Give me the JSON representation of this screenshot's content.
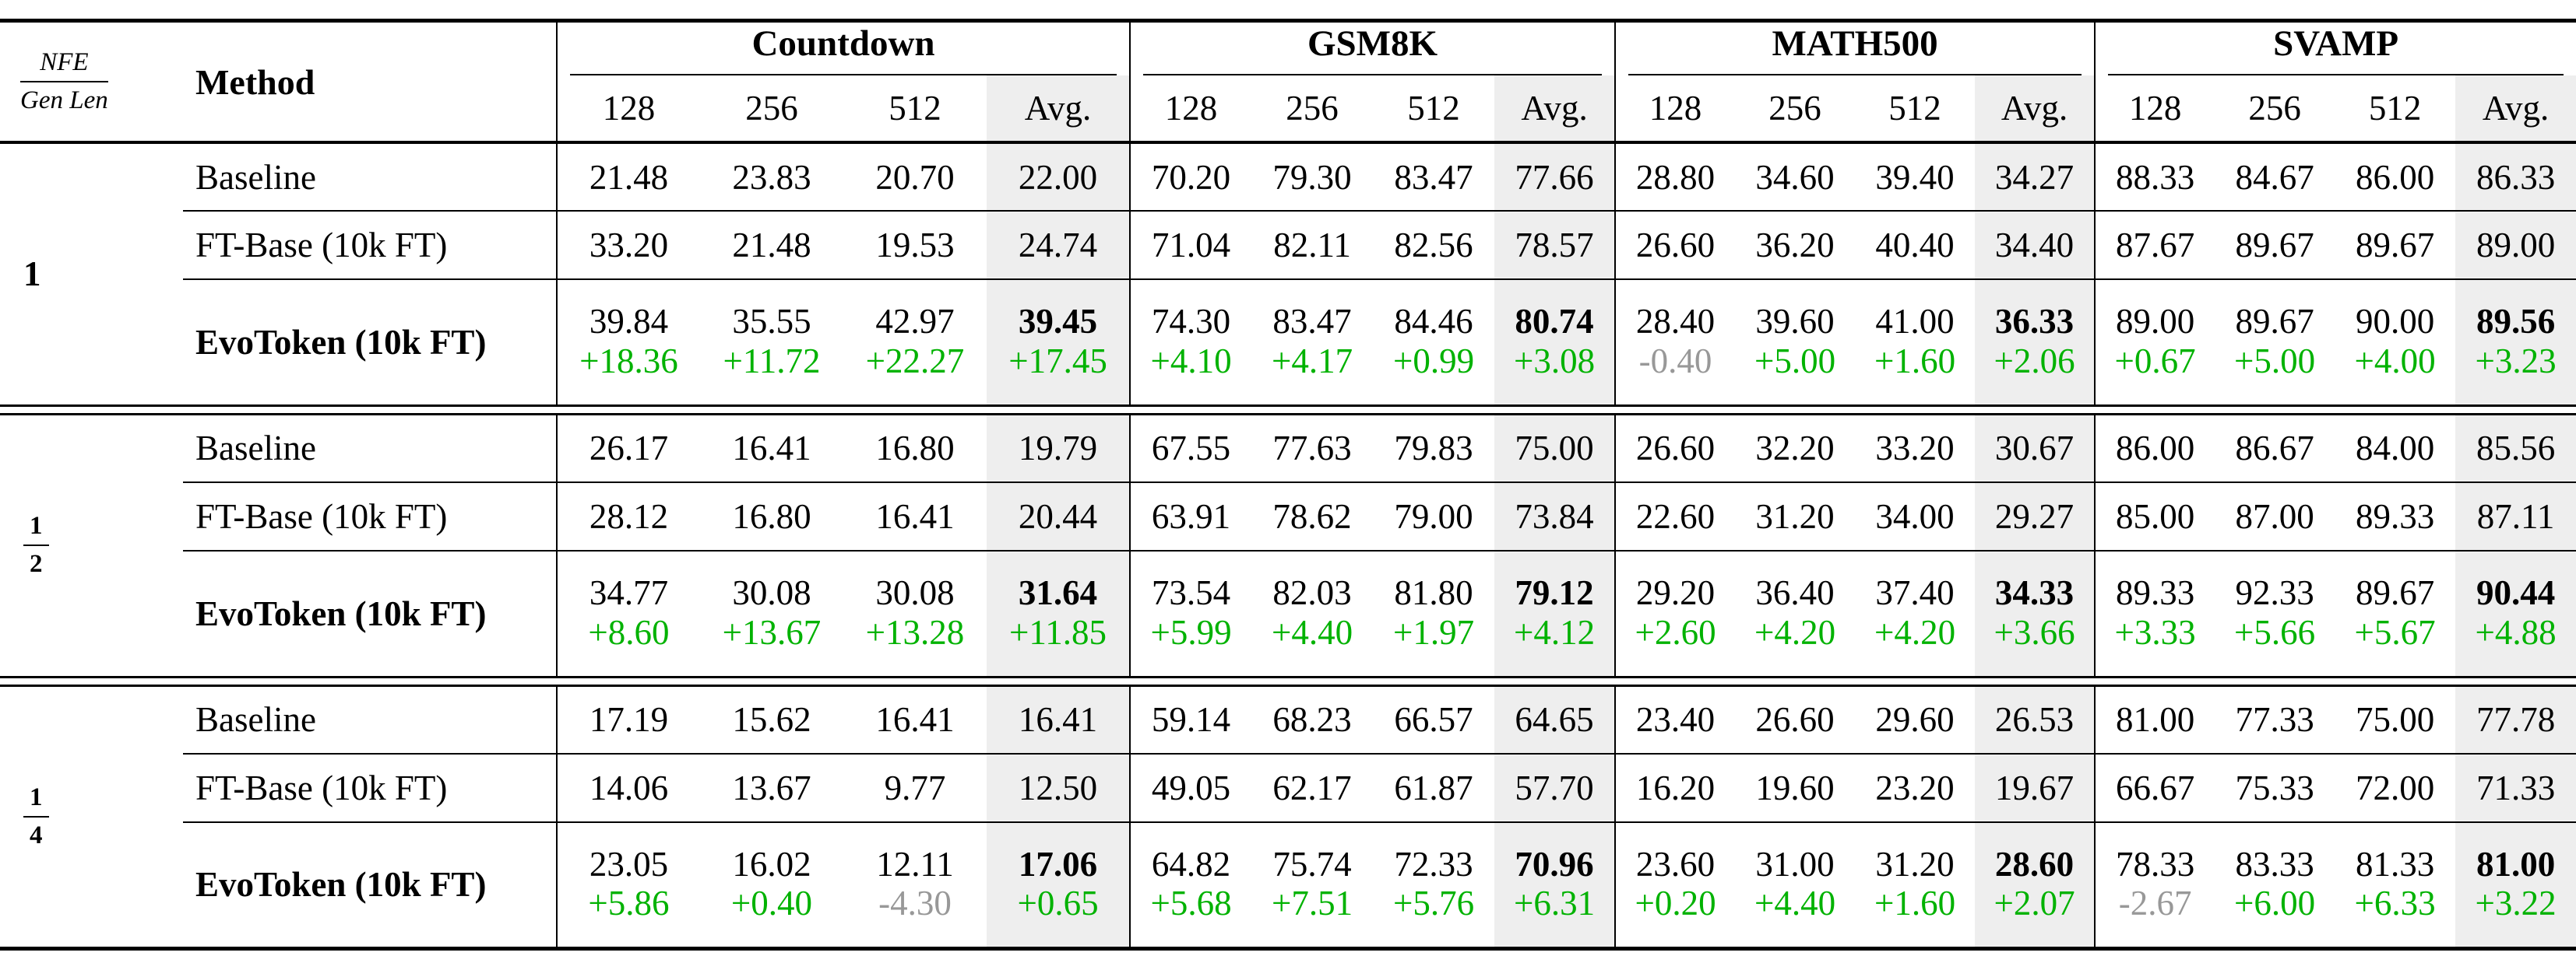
{
  "table": {
    "corner": {
      "numerator": "NFE",
      "denominator": "Gen Len",
      "method_label": "Method"
    },
    "benchmarks": [
      "Countdown",
      "GSM8K",
      "MATH500",
      "SVAMP"
    ],
    "gen_lengths": [
      "128",
      "256",
      "512",
      "Avg."
    ],
    "groups": [
      {
        "ratio": {
          "label": "1"
        },
        "rows": [
          {
            "method": "Baseline",
            "bold": false,
            "cells": [
              [
                "21.48",
                "23.83",
                "20.70",
                "22.00"
              ],
              [
                "70.20",
                "79.30",
                "83.47",
                "77.66"
              ],
              [
                "28.80",
                "34.60",
                "39.40",
                "34.27"
              ],
              [
                "88.33",
                "84.67",
                "86.00",
                "86.33"
              ]
            ]
          },
          {
            "method": "FT-Base (10k FT)",
            "bold": false,
            "cells": [
              [
                "33.20",
                "21.48",
                "19.53",
                "24.74"
              ],
              [
                "71.04",
                "82.11",
                "82.56",
                "78.57"
              ],
              [
                "26.60",
                "36.20",
                "40.40",
                "34.40"
              ],
              [
                "87.67",
                "89.67",
                "89.67",
                "89.00"
              ]
            ]
          },
          {
            "method": "EvoToken (10k FT)",
            "bold": true,
            "cells": [
              [
                "39.84",
                "35.55",
                "42.97",
                "39.45"
              ],
              [
                "74.30",
                "83.47",
                "84.46",
                "80.74"
              ],
              [
                "28.40",
                "39.60",
                "41.00",
                "36.33"
              ],
              [
                "89.00",
                "89.67",
                "90.00",
                "89.56"
              ]
            ],
            "deltas": [
              [
                "+18.36",
                "+11.72",
                "+22.27",
                "+17.45"
              ],
              [
                "+4.10",
                "+4.17",
                "+0.99",
                "+3.08"
              ],
              [
                "-0.40",
                "+5.00",
                "+1.60",
                "+2.06"
              ],
              [
                "+0.67",
                "+5.00",
                "+4.00",
                "+3.23"
              ]
            ]
          }
        ]
      },
      {
        "ratio": {
          "num": "1",
          "den": "2"
        },
        "rows": [
          {
            "method": "Baseline",
            "bold": false,
            "cells": [
              [
                "26.17",
                "16.41",
                "16.80",
                "19.79"
              ],
              [
                "67.55",
                "77.63",
                "79.83",
                "75.00"
              ],
              [
                "26.60",
                "32.20",
                "33.20",
                "30.67"
              ],
              [
                "86.00",
                "86.67",
                "84.00",
                "85.56"
              ]
            ]
          },
          {
            "method": "FT-Base (10k FT)",
            "bold": false,
            "cells": [
              [
                "28.12",
                "16.80",
                "16.41",
                "20.44"
              ],
              [
                "63.91",
                "78.62",
                "79.00",
                "73.84"
              ],
              [
                "22.60",
                "31.20",
                "34.00",
                "29.27"
              ],
              [
                "85.00",
                "87.00",
                "89.33",
                "87.11"
              ]
            ]
          },
          {
            "method": "EvoToken (10k FT)",
            "bold": true,
            "cells": [
              [
                "34.77",
                "30.08",
                "30.08",
                "31.64"
              ],
              [
                "73.54",
                "82.03",
                "81.80",
                "79.12"
              ],
              [
                "29.20",
                "36.40",
                "37.40",
                "34.33"
              ],
              [
                "89.33",
                "92.33",
                "89.67",
                "90.44"
              ]
            ],
            "deltas": [
              [
                "+8.60",
                "+13.67",
                "+13.28",
                "+11.85"
              ],
              [
                "+5.99",
                "+4.40",
                "+1.97",
                "+4.12"
              ],
              [
                "+2.60",
                "+4.20",
                "+4.20",
                "+3.66"
              ],
              [
                "+3.33",
                "+5.66",
                "+5.67",
                "+4.88"
              ]
            ]
          }
        ]
      },
      {
        "ratio": {
          "num": "1",
          "den": "4"
        },
        "rows": [
          {
            "method": "Baseline",
            "bold": false,
            "cells": [
              [
                "17.19",
                "15.62",
                "16.41",
                "16.41"
              ],
              [
                "59.14",
                "68.23",
                "66.57",
                "64.65"
              ],
              [
                "23.40",
                "26.60",
                "29.60",
                "26.53"
              ],
              [
                "81.00",
                "77.33",
                "75.00",
                "77.78"
              ]
            ]
          },
          {
            "method": "FT-Base (10k FT)",
            "bold": false,
            "cells": [
              [
                "14.06",
                "13.67",
                "9.77",
                "12.50"
              ],
              [
                "49.05",
                "62.17",
                "61.87",
                "57.70"
              ],
              [
                "16.20",
                "19.60",
                "23.20",
                "19.67"
              ],
              [
                "66.67",
                "75.33",
                "72.00",
                "71.33"
              ]
            ]
          },
          {
            "method": "EvoToken (10k FT)",
            "bold": true,
            "cells": [
              [
                "23.05",
                "16.02",
                "12.11",
                "17.06"
              ],
              [
                "64.82",
                "75.74",
                "72.33",
                "70.96"
              ],
              [
                "23.60",
                "31.00",
                "31.20",
                "28.60"
              ],
              [
                "78.33",
                "83.33",
                "81.33",
                "81.00"
              ]
            ],
            "deltas": [
              [
                "+5.86",
                "+0.40",
                "-4.30",
                "+0.65"
              ],
              [
                "+5.68",
                "+7.51",
                "+5.76",
                "+6.31"
              ],
              [
                "+0.20",
                "+4.40",
                "+1.60",
                "+2.07"
              ],
              [
                "-2.67",
                "+6.00",
                "+6.33",
                "+3.22"
              ]
            ]
          }
        ]
      }
    ]
  },
  "colors": {
    "delta_positive": "#00B200",
    "delta_negative": "#989898",
    "avg_background": "#EEEEEE"
  }
}
